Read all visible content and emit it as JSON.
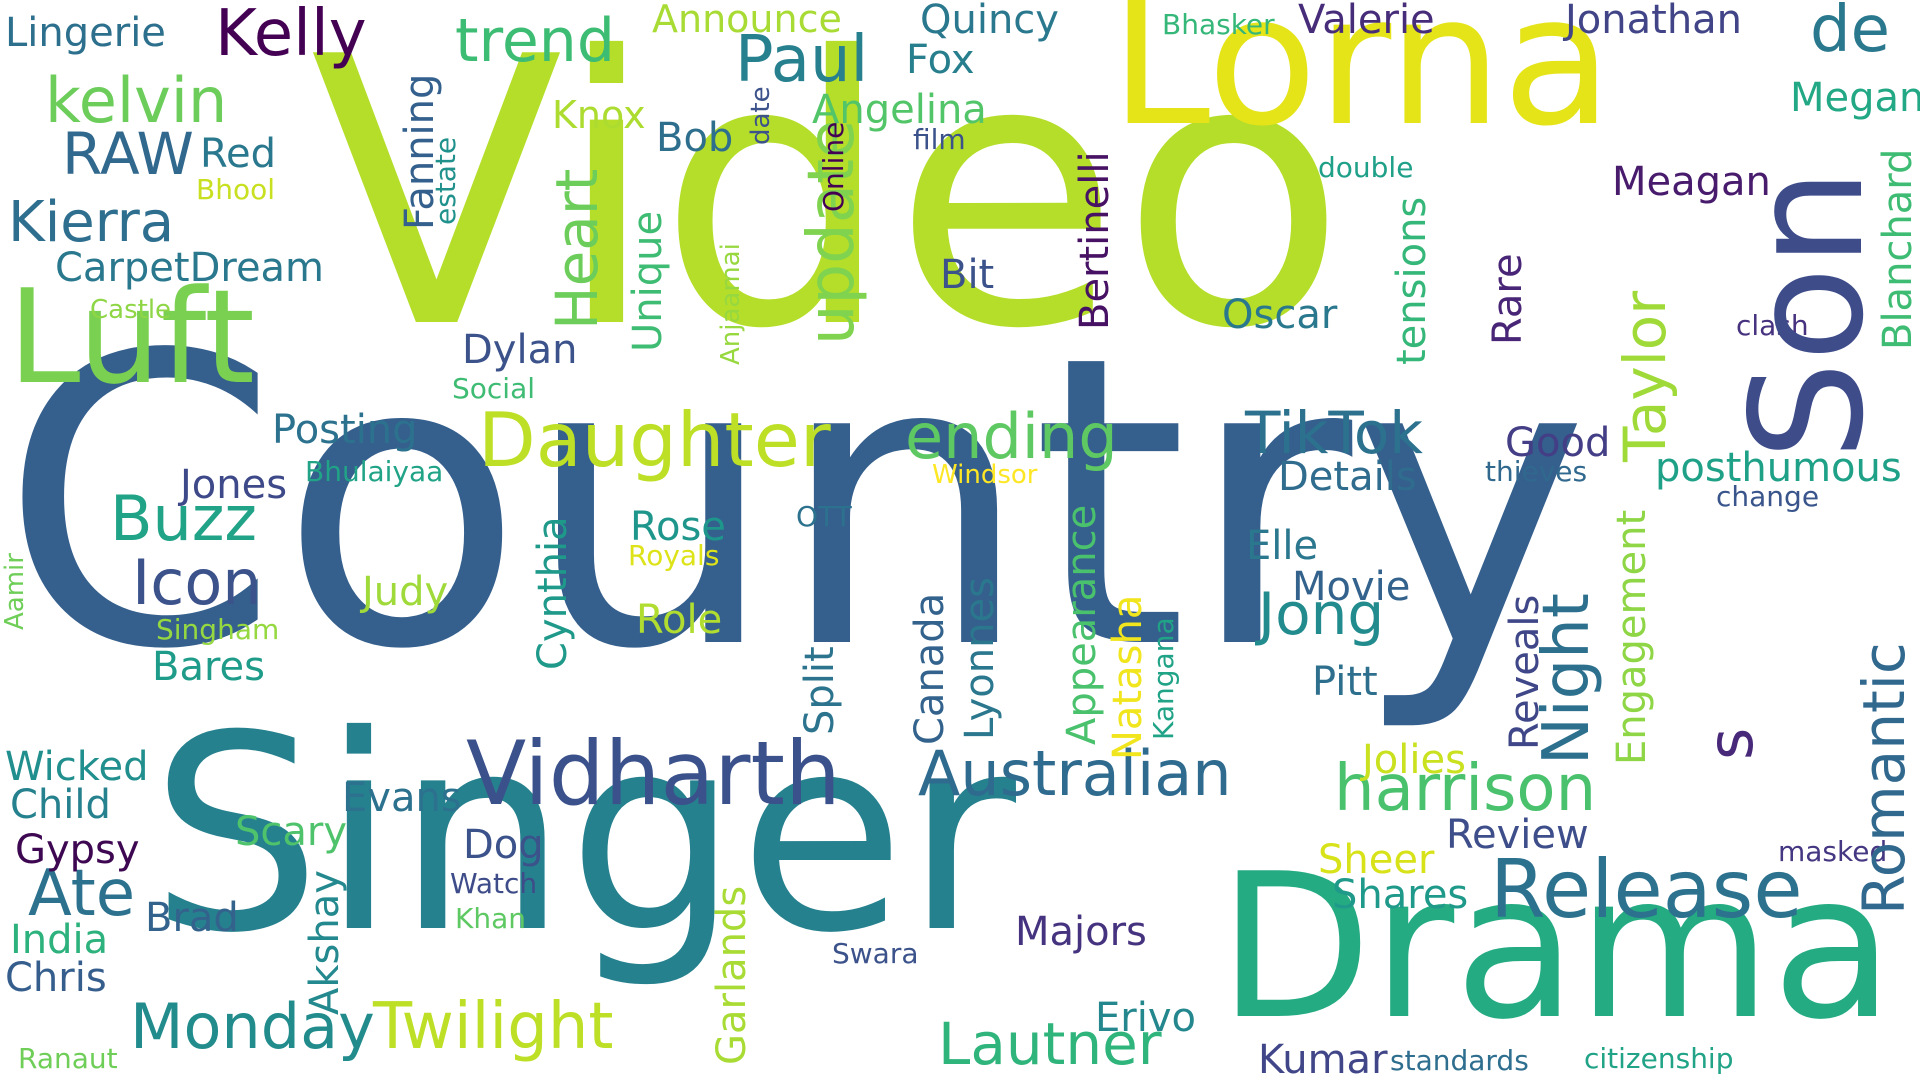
{
  "words": [
    {
      "text": "Country",
      "color": "#355f8d"
    },
    {
      "text": "Video",
      "color": "#b5de2b"
    },
    {
      "text": "Singer",
      "color": "#26818e"
    },
    {
      "text": "Drama",
      "color": "#25ab82"
    },
    {
      "text": "Lorna",
      "color": "#e5e419"
    },
    {
      "text": "Son",
      "color": "#3e4c8a"
    },
    {
      "text": "Luft",
      "color": "#7ad151"
    },
    {
      "text": "Vidharth",
      "color": "#3b518b"
    },
    {
      "text": "Release",
      "color": "#2c728e"
    },
    {
      "text": "Daughter",
      "color": "#bddf26"
    },
    {
      "text": "Australian",
      "color": "#2f6b8e"
    },
    {
      "text": "ending",
      "color": "#5ec962"
    },
    {
      "text": "Twilight",
      "color": "#bddf26"
    },
    {
      "text": "harrison",
      "color": "#4ac16d"
    },
    {
      "text": "Monday",
      "color": "#228c8d"
    },
    {
      "text": "Lautner",
      "color": "#2fb47c"
    },
    {
      "text": "Kelly",
      "color": "#440154"
    },
    {
      "text": "trend",
      "color": "#3dbc74"
    },
    {
      "text": "kelvin",
      "color": "#6ccd5a"
    },
    {
      "text": "Paul",
      "color": "#27808e"
    },
    {
      "text": "de",
      "color": "#2a788e"
    },
    {
      "text": "RAW",
      "color": "#31688e"
    },
    {
      "text": "Kierra",
      "color": "#2e6e8e"
    },
    {
      "text": "Buzz",
      "color": "#20a386"
    },
    {
      "text": "Icon",
      "color": "#3b528b"
    },
    {
      "text": "Ate",
      "color": "#2c728e"
    },
    {
      "text": "TikTok",
      "color": "#2c718e"
    },
    {
      "text": "Jong",
      "color": "#228b8d"
    },
    {
      "text": "Night",
      "color": "#2d708e"
    },
    {
      "text": "update",
      "color": "#7fd34e"
    },
    {
      "text": "Heart",
      "color": "#6ccd5a"
    },
    {
      "text": "Taylor",
      "color": "#a0da39"
    },
    {
      "text": "Romantic",
      "color": "#31688e"
    },
    {
      "text": "s",
      "color": "#482878"
    },
    {
      "text": "Lingerie",
      "color": "#2d708e"
    },
    {
      "text": "Announce",
      "color": "#a8db34"
    },
    {
      "text": "Quincy",
      "color": "#2a788e"
    },
    {
      "text": "Bhasker",
      "color": "#35b779"
    },
    {
      "text": "Valerie",
      "color": "#472c7a"
    },
    {
      "text": "Jonathan",
      "color": "#414487"
    },
    {
      "text": "Megan",
      "color": "#22a884"
    },
    {
      "text": "Fox",
      "color": "#277f8e"
    },
    {
      "text": "Angelina",
      "color": "#52c569"
    },
    {
      "text": "Knox",
      "color": "#addc30"
    },
    {
      "text": "Bob",
      "color": "#2e6f8e"
    },
    {
      "text": "film",
      "color": "#3b528b"
    },
    {
      "text": "double",
      "color": "#1fa088"
    },
    {
      "text": "Red",
      "color": "#2a788e"
    },
    {
      "text": "Bhool",
      "color": "#c8e020"
    },
    {
      "text": "CarpetDream",
      "color": "#2a788e"
    },
    {
      "text": "Castle",
      "color": "#8ed645"
    },
    {
      "text": "Meagan",
      "color": "#481b6d"
    },
    {
      "text": "Bit",
      "color": "#3b528b"
    },
    {
      "text": "Oscar",
      "color": "#2a788e"
    },
    {
      "text": "clash",
      "color": "#46327e"
    },
    {
      "text": "Dylan",
      "color": "#3b528b"
    },
    {
      "text": "Social",
      "color": "#3fbc73"
    },
    {
      "text": "Posting",
      "color": "#2c728e"
    },
    {
      "text": "Good",
      "color": "#433e85"
    },
    {
      "text": "Bhulaiyaa",
      "color": "#20a386"
    },
    {
      "text": "Windsor",
      "color": "#fde725"
    },
    {
      "text": "thieves",
      "color": "#31688e"
    },
    {
      "text": "posthumous",
      "color": "#1fa188"
    },
    {
      "text": "Jones",
      "color": "#3e4989"
    },
    {
      "text": "Details",
      "color": "#2f6c8e"
    },
    {
      "text": "change",
      "color": "#39558c"
    },
    {
      "text": "OTT",
      "color": "#2c728e"
    },
    {
      "text": "Rose",
      "color": "#1f968b"
    },
    {
      "text": "Royals",
      "color": "#dde318"
    },
    {
      "text": "Elle",
      "color": "#2a778e"
    },
    {
      "text": "Movie",
      "color": "#33628d"
    },
    {
      "text": "Judy",
      "color": "#9fda3a"
    },
    {
      "text": "Role",
      "color": "#b0dd2f"
    },
    {
      "text": "Singham",
      "color": "#95d840"
    },
    {
      "text": "Bares",
      "color": "#1e9c89"
    },
    {
      "text": "Aamir",
      "color": "#6ece58"
    },
    {
      "text": "Pitt",
      "color": "#2e6f8e"
    },
    {
      "text": "Wicked",
      "color": "#218f8d"
    },
    {
      "text": "Child",
      "color": "#26818e"
    },
    {
      "text": "Gypsy",
      "color": "#3e0751"
    },
    {
      "text": "Evans",
      "color": "#2c728e"
    },
    {
      "text": "Scary",
      "color": "#4ec36b"
    },
    {
      "text": "Dog",
      "color": "#3b528b"
    },
    {
      "text": "Jolies",
      "color": "#cae11f"
    },
    {
      "text": "Review",
      "color": "#3d4e8a"
    },
    {
      "text": "Sheer",
      "color": "#d8e219"
    },
    {
      "text": "masked",
      "color": "#453781"
    },
    {
      "text": "Watch",
      "color": "#3e4c8a"
    },
    {
      "text": "Khan",
      "color": "#5ec962"
    },
    {
      "text": "Shares",
      "color": "#1f998a"
    },
    {
      "text": "Brad",
      "color": "#33638d"
    },
    {
      "text": "India",
      "color": "#2db27d"
    },
    {
      "text": "Chris",
      "color": "#355e8d"
    },
    {
      "text": "Swara",
      "color": "#3b528b"
    },
    {
      "text": "Majors",
      "color": "#46337f"
    },
    {
      "text": "Erivo",
      "color": "#24878e"
    },
    {
      "text": "Ranaut",
      "color": "#6ece58"
    },
    {
      "text": "Kumar",
      "color": "#404688"
    },
    {
      "text": "standards",
      "color": "#2e6e8e"
    },
    {
      "text": "citizenship",
      "color": "#20a386"
    },
    {
      "text": "Fanning",
      "color": "#34608d"
    },
    {
      "text": "estate",
      "color": "#21918c"
    },
    {
      "text": "date",
      "color": "#3b528b"
    },
    {
      "text": "Online",
      "color": "#440154"
    },
    {
      "text": "Anjaamai",
      "color": "#97d83f"
    },
    {
      "text": "Unique",
      "color": "#3fbc73"
    },
    {
      "text": "Bertinelli",
      "color": "#471164"
    },
    {
      "text": "tensions",
      "color": "#35b779"
    },
    {
      "text": "Rare",
      "color": "#482576"
    },
    {
      "text": "Blanchard",
      "color": "#3fbc73"
    },
    {
      "text": "Cynthia",
      "color": "#1f998a"
    },
    {
      "text": "Split",
      "color": "#2c738e"
    },
    {
      "text": "Canada",
      "color": "#33638d"
    },
    {
      "text": "Lyonnes",
      "color": "#2a778e"
    },
    {
      "text": "Appearance",
      "color": "#4ac16d"
    },
    {
      "text": "Natasha",
      "color": "#f1e51d"
    },
    {
      "text": "Kangana",
      "color": "#20a386"
    },
    {
      "text": "Reveals",
      "color": "#3f4788"
    },
    {
      "text": "Engagement",
      "color": "#8ed645"
    },
    {
      "text": "Akshay",
      "color": "#23898e"
    },
    {
      "text": "Garlands",
      "color": "#a8db34"
    }
  ]
}
